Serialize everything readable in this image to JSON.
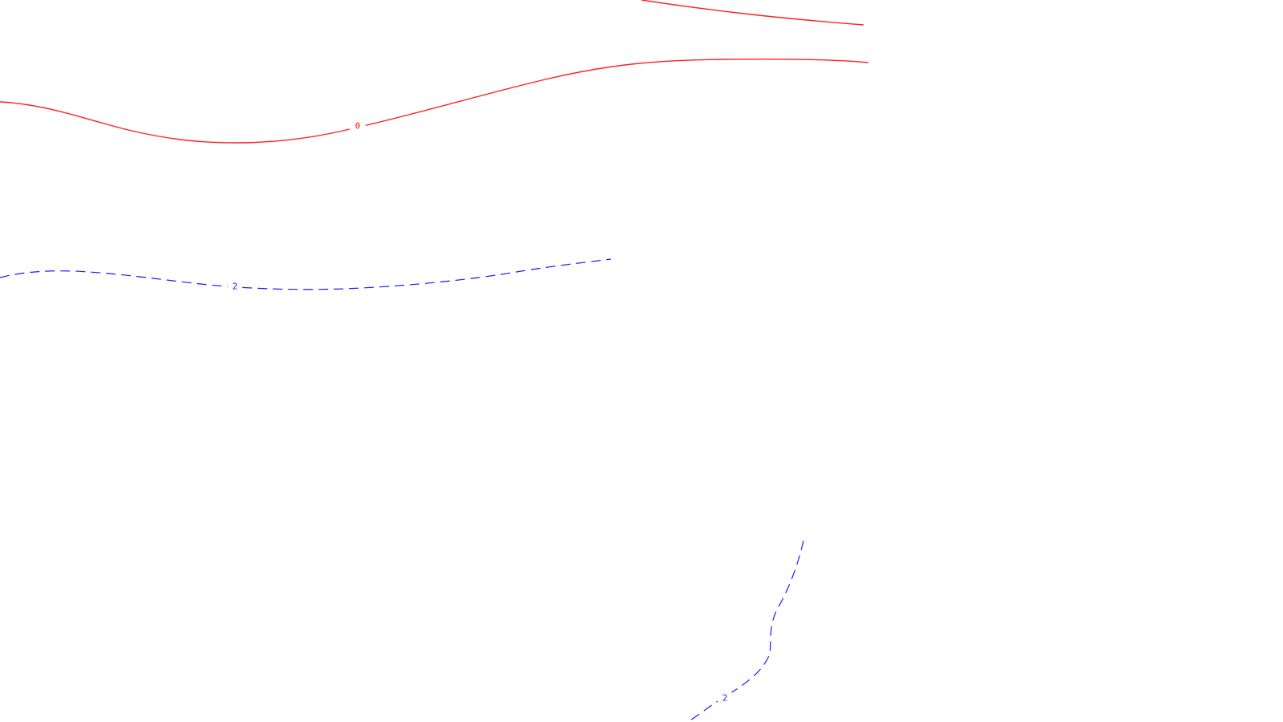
{
  "contours": {
    "colors": {
      "positive": "#ff2020",
      "negative": "#1a1aff"
    },
    "levels": [
      {
        "id": "contour-0-main",
        "sign": "zero",
        "style": "solid",
        "label": "0"
      },
      {
        "id": "contour-0-upper",
        "sign": "zero",
        "style": "solid",
        "label": ""
      },
      {
        "id": "contour-2-left",
        "sign": "negative",
        "style": "dashed",
        "label": "2"
      },
      {
        "id": "contour-2-bottom",
        "sign": "negative",
        "style": "dashed",
        "label": "2"
      }
    ]
  }
}
